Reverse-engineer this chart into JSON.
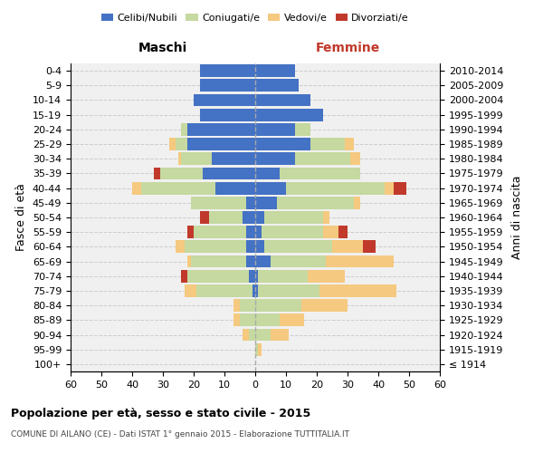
{
  "age_groups": [
    "100+",
    "95-99",
    "90-94",
    "85-89",
    "80-84",
    "75-79",
    "70-74",
    "65-69",
    "60-64",
    "55-59",
    "50-54",
    "45-49",
    "40-44",
    "35-39",
    "30-34",
    "25-29",
    "20-24",
    "15-19",
    "10-14",
    "5-9",
    "0-4"
  ],
  "birth_years": [
    "≤ 1914",
    "1915-1919",
    "1920-1924",
    "1925-1929",
    "1930-1934",
    "1935-1939",
    "1940-1944",
    "1945-1949",
    "1950-1954",
    "1955-1959",
    "1960-1964",
    "1965-1969",
    "1970-1974",
    "1975-1979",
    "1980-1984",
    "1985-1989",
    "1990-1994",
    "1995-1999",
    "2000-2004",
    "2005-2009",
    "2010-2014"
  ],
  "male": {
    "celibi": [
      0,
      0,
      0,
      0,
      0,
      1,
      2,
      3,
      3,
      3,
      4,
      3,
      13,
      17,
      14,
      22,
      22,
      18,
      20,
      18,
      18
    ],
    "coniugati": [
      0,
      0,
      2,
      5,
      5,
      18,
      20,
      18,
      20,
      17,
      11,
      18,
      24,
      14,
      10,
      4,
      2,
      0,
      0,
      0,
      0
    ],
    "vedovi": [
      0,
      0,
      2,
      2,
      2,
      4,
      0,
      1,
      3,
      0,
      0,
      0,
      3,
      0,
      1,
      2,
      0,
      0,
      0,
      0,
      0
    ],
    "divorziati": [
      0,
      0,
      0,
      0,
      0,
      0,
      2,
      0,
      0,
      2,
      3,
      0,
      0,
      2,
      0,
      0,
      0,
      0,
      0,
      0,
      0
    ]
  },
  "female": {
    "nubili": [
      0,
      0,
      0,
      0,
      0,
      1,
      1,
      5,
      3,
      2,
      3,
      7,
      10,
      8,
      13,
      18,
      13,
      22,
      18,
      14,
      13
    ],
    "coniugate": [
      0,
      1,
      5,
      8,
      15,
      20,
      16,
      18,
      22,
      20,
      19,
      25,
      32,
      26,
      18,
      11,
      5,
      0,
      0,
      0,
      0
    ],
    "vedove": [
      0,
      1,
      6,
      8,
      15,
      25,
      12,
      22,
      10,
      5,
      2,
      2,
      3,
      0,
      3,
      3,
      0,
      0,
      0,
      0,
      0
    ],
    "divorziate": [
      0,
      0,
      0,
      0,
      0,
      0,
      0,
      0,
      4,
      3,
      0,
      0,
      4,
      0,
      0,
      0,
      0,
      0,
      0,
      0,
      0
    ]
  },
  "colors": {
    "celibi": "#4472c4",
    "coniugati": "#c5d9a0",
    "vedovi": "#f5c97f",
    "divorziati": "#c0392b"
  },
  "xlim": 60,
  "title": "Popolazione per età, sesso e stato civile - 2015",
  "subtitle": "COMUNE DI AILANO (CE) - Dati ISTAT 1° gennaio 2015 - Elaborazione TUTTITALIA.IT",
  "ylabel_left": "Fasce di età",
  "ylabel_right": "Anni di nascita",
  "xlabel_left": "Maschi",
  "xlabel_right": "Femmine",
  "bg_color": "#f0f0f0",
  "grid_color": "#cccccc",
  "femmine_color": "#c0392b"
}
